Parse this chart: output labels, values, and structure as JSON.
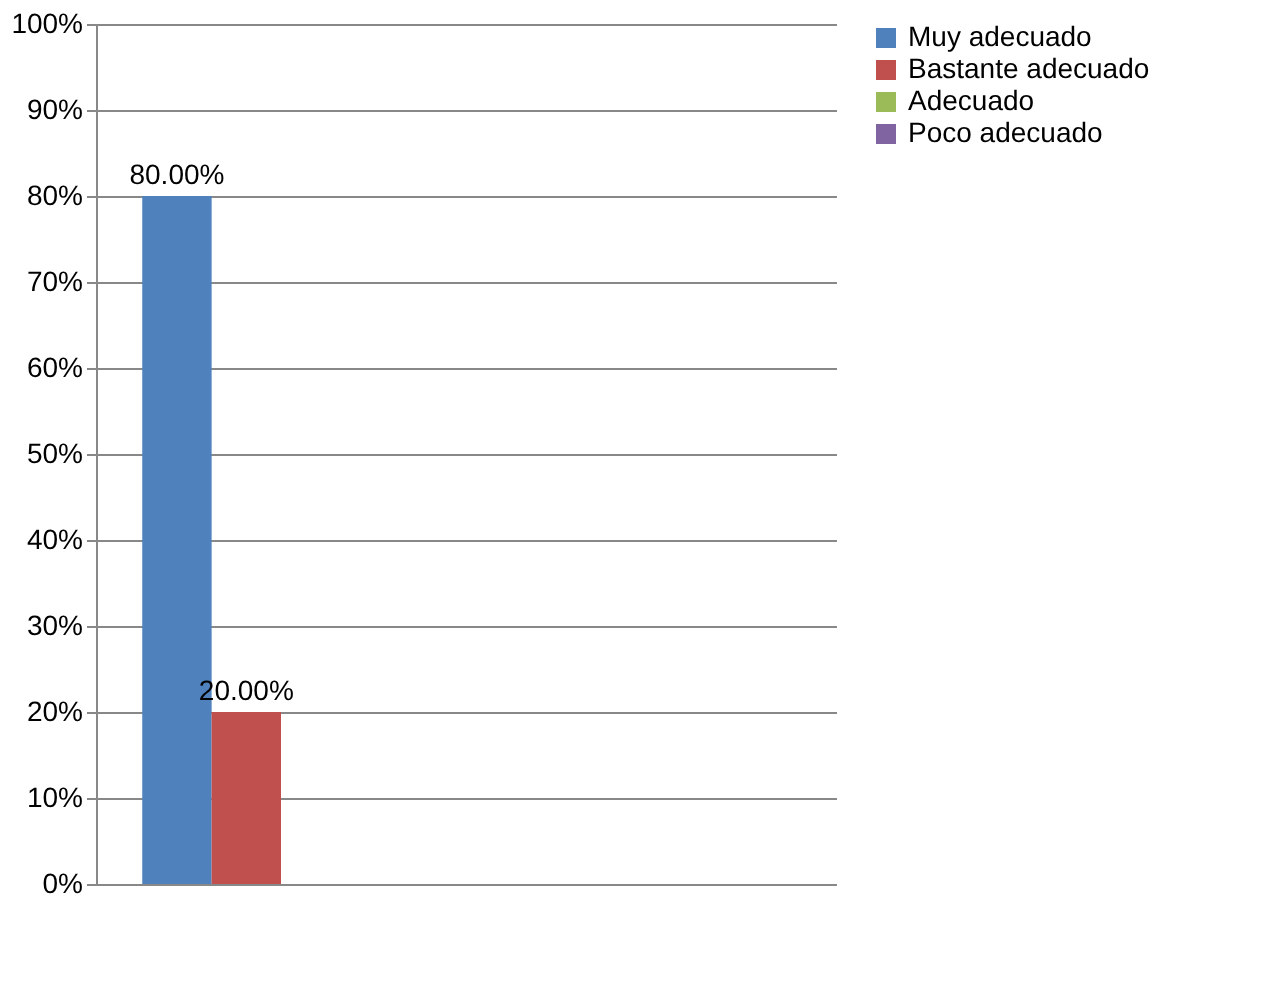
{
  "chart_data": {
    "type": "bar",
    "categories": [
      null,
      null
    ],
    "series": [
      {
        "name": "Muy  adecuado",
        "color": "#4f81bd",
        "values": [
          80,
          null
        ],
        "value_labels": [
          "80.00%",
          null
        ]
      },
      {
        "name": "Bastante adecuado",
        "color": "#c0504d",
        "values": [
          20,
          null
        ],
        "value_labels": [
          "20.00%",
          null
        ]
      },
      {
        "name": "Adecuado",
        "color": "#9bbb59",
        "values": [
          null,
          null
        ]
      },
      {
        "name": "Poco adecuado",
        "color": "#8064a2",
        "values": [
          null,
          null
        ]
      }
    ],
    "ylim": [
      0,
      100
    ],
    "yticks": [
      {
        "value": 0,
        "label": "0%"
      },
      {
        "value": 10,
        "label": "10%"
      },
      {
        "value": 20,
        "label": "20%"
      },
      {
        "value": 30,
        "label": "30%"
      },
      {
        "value": 40,
        "label": "40%"
      },
      {
        "value": 50,
        "label": "50%"
      },
      {
        "value": 60,
        "label": "60%"
      },
      {
        "value": 70,
        "label": "70%"
      },
      {
        "value": 80,
        "label": "80%"
      },
      {
        "value": 90,
        "label": "90%"
      },
      {
        "value": 100,
        "label": "100%"
      }
    ],
    "grid": "y",
    "legend": "right",
    "tick_labels": "y"
  }
}
